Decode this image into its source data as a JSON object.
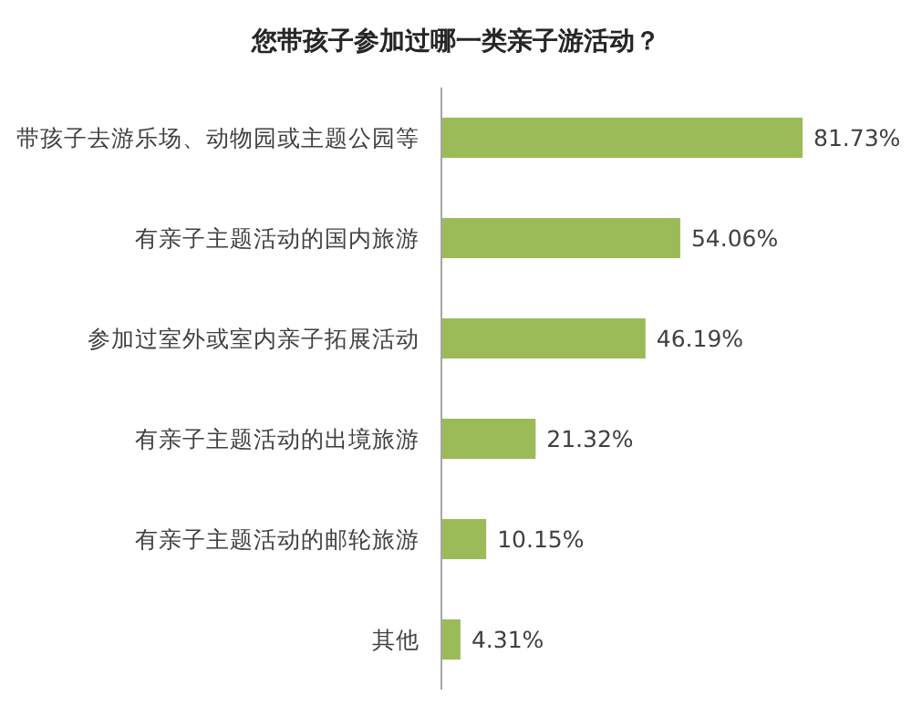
{
  "chart_data": {
    "type": "bar",
    "orientation": "horizontal",
    "title": "您带孩子参加过哪一类亲子游活动？",
    "categories": [
      "带孩子去游乐场、动物园或主题公园等",
      "有亲子主题活动的国内旅游",
      "参加过室外或室内亲子拓展活动",
      "有亲子主题活动的出境旅游",
      "有亲子主题活动的邮轮旅游",
      "其他"
    ],
    "values": [
      81.73,
      54.06,
      46.19,
      21.32,
      10.15,
      4.31
    ],
    "value_labels": [
      "81.73%",
      "54.06%",
      "46.19%",
      "21.32%",
      "10.15%",
      "4.31%"
    ],
    "color": "#9bbb59"
  }
}
